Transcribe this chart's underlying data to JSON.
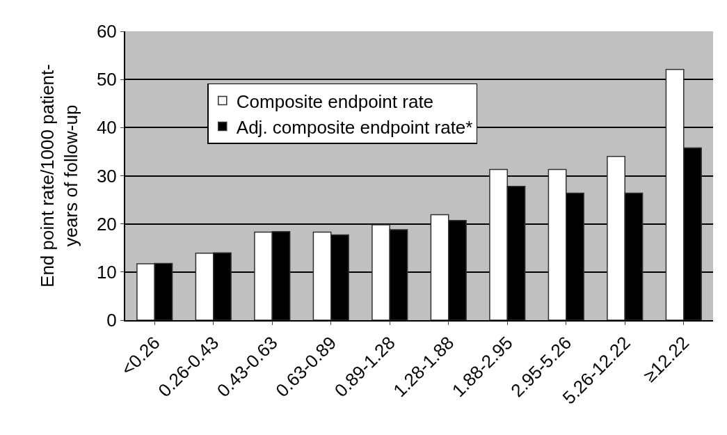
{
  "chart_data": {
    "type": "bar",
    "ylabel": "End point rate/1000 patient-\nyears of follow-up",
    "categories": [
      "<0.26",
      "0.26-0.43",
      "0.43-0.63",
      "0.63-0.89",
      "0.89-1.28",
      "1.28-1.88",
      "1.88-2.95",
      "2.95-5.26",
      "5.26-12.22",
      "≥12.22"
    ],
    "series": [
      {
        "name": "Composite endpoint rate",
        "color": "#ffffff",
        "values": [
          11.7,
          13.9,
          18.3,
          18.3,
          19.8,
          21.9,
          31.3,
          31.3,
          34.0,
          52.1
        ]
      },
      {
        "name": "Adj. composite endpoint rate*",
        "color": "#000000",
        "values": [
          11.8,
          14.0,
          18.4,
          17.7,
          18.8,
          20.7,
          27.8,
          26.4,
          26.4,
          35.8
        ]
      }
    ],
    "ylim": [
      0,
      60
    ],
    "yticks": [
      0,
      10,
      20,
      30,
      40,
      50,
      60
    ],
    "grid": "y",
    "legend": "top left"
  }
}
